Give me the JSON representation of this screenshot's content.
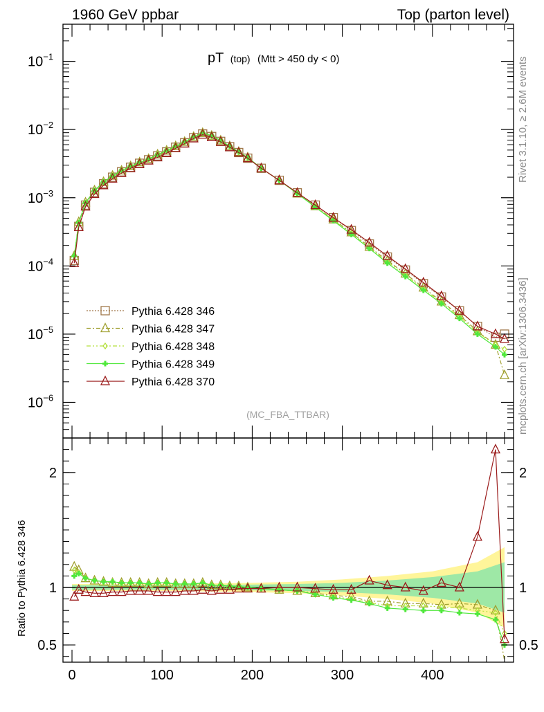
{
  "header": {
    "left": "1960 GeV ppbar",
    "right": "Top (parton level)"
  },
  "side_labels": {
    "rivet": "Rivet 3.1.10, ≥ 2.6M events",
    "mcplots": "mcplots.cern.ch [arXiv:1306.3436]"
  },
  "chart_data": [
    {
      "type": "line",
      "panel": "main",
      "title_main": "pT",
      "title_sub": "(top)",
      "title_cut": "(Mtt > 450 dy < 0)",
      "watermark": "(MC_FBA_TTBAR)",
      "yscale": "log",
      "xlim": [
        -10,
        490
      ],
      "ylim": [
        3e-07,
        0.35
      ],
      "y_ticks": [
        {
          "value": 1e-06,
          "base": "10",
          "exp": "−6"
        },
        {
          "value": 1e-05,
          "base": "10",
          "exp": "−5"
        },
        {
          "value": 0.0001,
          "base": "10",
          "exp": "−4"
        },
        {
          "value": 0.001,
          "base": "10",
          "exp": "−3"
        },
        {
          "value": 0.01,
          "base": "10",
          "exp": "−2"
        },
        {
          "value": 0.1,
          "base": "10",
          "exp": "−1"
        }
      ],
      "legend_position": "middle-left",
      "series": [
        {
          "name": "Pythia 6.428 346",
          "color": "#a0784a",
          "marker": "square",
          "dash": "2,2",
          "x": [
            2.5,
            7.5,
            15,
            25,
            35,
            45,
            55,
            65,
            75,
            85,
            95,
            105,
            115,
            125,
            135,
            145,
            155,
            165,
            175,
            185,
            195,
            210,
            230,
            250,
            270,
            290,
            310,
            330,
            350,
            370,
            390,
            410,
            430,
            450,
            470,
            480
          ],
          "y": [
            0.00012,
            0.00038,
            0.00078,
            0.0012,
            0.0016,
            0.002,
            0.0024,
            0.0028,
            0.0032,
            0.0036,
            0.0041,
            0.0047,
            0.0055,
            0.0064,
            0.0076,
            0.0086,
            0.0079,
            0.0067,
            0.0056,
            0.0046,
            0.0038,
            0.0027,
            0.0018,
            0.00118,
            0.00078,
            0.00051,
            0.00033,
            0.00021,
            0.000135,
            8.7e-05,
            5.5e-05,
            3.5e-05,
            2.2e-05,
            1.3e-05,
            9e-06,
            1e-05
          ]
        },
        {
          "name": "Pythia 6.428 347",
          "color": "#a0a030",
          "marker": "triangle",
          "dash": "6,3,2,3",
          "x": [
            2.5,
            7.5,
            15,
            25,
            35,
            45,
            55,
            65,
            75,
            85,
            95,
            105,
            115,
            125,
            135,
            145,
            155,
            165,
            175,
            185,
            195,
            210,
            230,
            250,
            270,
            290,
            310,
            330,
            350,
            370,
            390,
            410,
            430,
            450,
            470,
            480
          ],
          "y": [
            0.00014,
            0.00044,
            0.00085,
            0.00128,
            0.0017,
            0.0021,
            0.0025,
            0.0029,
            0.0033,
            0.0037,
            0.0043,
            0.0049,
            0.0057,
            0.0066,
            0.0078,
            0.0089,
            0.0081,
            0.0069,
            0.0057,
            0.0047,
            0.0039,
            0.0027,
            0.0018,
            0.00115,
            0.00075,
            0.00048,
            0.00031,
            0.00019,
            0.00012,
            7.7e-05,
            4.8e-05,
            3e-05,
            1.9e-05,
            1.1e-05,
            7e-06,
            2.5e-06
          ]
        },
        {
          "name": "Pythia 6.428 348",
          "color": "#b4e03c",
          "marker": "diamond",
          "dash": "6,3,2,3,2,3",
          "x": [
            2.5,
            7.5,
            15,
            25,
            35,
            45,
            55,
            65,
            75,
            85,
            95,
            105,
            115,
            125,
            135,
            145,
            155,
            165,
            175,
            185,
            195,
            210,
            230,
            250,
            270,
            290,
            310,
            330,
            350,
            370,
            390,
            410,
            430,
            450,
            470,
            480
          ],
          "y": [
            0.00014,
            0.00043,
            0.00084,
            0.00127,
            0.0017,
            0.0021,
            0.0025,
            0.0029,
            0.0033,
            0.0037,
            0.0043,
            0.0049,
            0.0057,
            0.0066,
            0.0078,
            0.0089,
            0.0081,
            0.0069,
            0.0057,
            0.0047,
            0.0039,
            0.0027,
            0.0018,
            0.00115,
            0.00074,
            0.00047,
            0.0003,
            0.000185,
            0.000115,
            7.3e-05,
            4.6e-05,
            2.9e-05,
            1.8e-05,
            1.05e-05,
            7e-06,
            6e-06
          ]
        },
        {
          "name": "Pythia 6.428 349",
          "color": "#50e83c",
          "marker": "cross",
          "dash": "",
          "x": [
            2.5,
            7.5,
            15,
            25,
            35,
            45,
            55,
            65,
            75,
            85,
            95,
            105,
            115,
            125,
            135,
            145,
            155,
            165,
            175,
            185,
            195,
            210,
            230,
            250,
            270,
            290,
            310,
            330,
            350,
            370,
            390,
            410,
            430,
            450,
            470,
            480
          ],
          "y": [
            0.00014,
            0.00043,
            0.00084,
            0.00127,
            0.0017,
            0.0021,
            0.0025,
            0.0029,
            0.0033,
            0.0037,
            0.0043,
            0.0049,
            0.0057,
            0.0066,
            0.0078,
            0.0089,
            0.0081,
            0.0069,
            0.0057,
            0.0047,
            0.0039,
            0.0027,
            0.0018,
            0.00115,
            0.00073,
            0.00046,
            0.00029,
            0.00018,
            0.00011,
            7e-05,
            4.4e-05,
            2.8e-05,
            1.7e-05,
            1e-05,
            6.5e-06,
            5e-06
          ]
        },
        {
          "name": "Pythia 6.428 370",
          "color": "#9b1c1c",
          "marker": "triangle",
          "dash": "",
          "x": [
            2.5,
            7.5,
            15,
            25,
            35,
            45,
            55,
            65,
            75,
            85,
            95,
            105,
            115,
            125,
            135,
            145,
            155,
            165,
            175,
            185,
            195,
            210,
            230,
            250,
            270,
            290,
            310,
            330,
            350,
            370,
            390,
            410,
            430,
            450,
            470,
            480
          ],
          "y": [
            0.00011,
            0.00037,
            0.00074,
            0.00113,
            0.00152,
            0.0019,
            0.0023,
            0.0027,
            0.0031,
            0.0035,
            0.0039,
            0.0045,
            0.0053,
            0.0062,
            0.0074,
            0.0084,
            0.0077,
            0.0066,
            0.0055,
            0.0046,
            0.0038,
            0.0027,
            0.0018,
            0.00118,
            0.00078,
            0.00051,
            0.00034,
            0.00022,
            0.00014,
            9e-05,
            5.7e-05,
            3.6e-05,
            2.2e-05,
            1.3e-05,
            1e-05,
            8.5e-06
          ]
        }
      ]
    },
    {
      "type": "line",
      "panel": "ratio",
      "ylabel": "Ratio to Pythia 6.428 346",
      "xlim": [
        -10,
        490
      ],
      "ylim": [
        0.35,
        2.3
      ],
      "x_ticks": [
        0,
        100,
        200,
        300,
        400
      ],
      "y_ticks": [
        0.5,
        1,
        2
      ],
      "y_tick_labels": [
        "0.5",
        "1",
        "2"
      ],
      "bands": [
        {
          "color": "#fff59a",
          "x": [
            0,
            100,
            200,
            250,
            300,
            350,
            400,
            450,
            480
          ],
          "half_width": [
            0.03,
            0.03,
            0.04,
            0.05,
            0.07,
            0.1,
            0.14,
            0.22,
            0.35
          ]
        },
        {
          "color": "#9ee8a6",
          "x": [
            0,
            100,
            200,
            250,
            300,
            350,
            400,
            450,
            480
          ],
          "half_width": [
            0.02,
            0.02,
            0.025,
            0.03,
            0.04,
            0.06,
            0.09,
            0.14,
            0.22
          ]
        }
      ],
      "series": [
        {
          "name": "Pythia 6.428 347",
          "color": "#a0a030",
          "marker": "triangle",
          "dash": "6,3,2,3",
          "x": [
            2.5,
            7.5,
            15,
            25,
            35,
            45,
            55,
            65,
            75,
            85,
            95,
            105,
            115,
            125,
            135,
            145,
            155,
            165,
            175,
            185,
            195,
            210,
            230,
            250,
            270,
            290,
            310,
            330,
            350,
            370,
            390,
            410,
            430,
            450,
            470,
            480
          ],
          "y": [
            1.18,
            1.15,
            1.08,
            1.06,
            1.05,
            1.04,
            1.04,
            1.04,
            1.04,
            1.03,
            1.04,
            1.04,
            1.03,
            1.03,
            1.03,
            1.04,
            1.02,
            1.02,
            1.01,
            1.01,
            1.0,
            0.99,
            0.98,
            0.97,
            0.95,
            0.93,
            0.92,
            0.88,
            0.88,
            0.86,
            0.86,
            0.85,
            0.86,
            0.85,
            0.8,
            0.25
          ]
        },
        {
          "name": "Pythia 6.428 348",
          "color": "#b4e03c",
          "marker": "diamond",
          "dash": "6,3,2,3,2,3",
          "x": [
            2.5,
            7.5,
            15,
            25,
            35,
            45,
            55,
            65,
            75,
            85,
            95,
            105,
            115,
            125,
            135,
            145,
            155,
            165,
            175,
            185,
            195,
            210,
            230,
            250,
            270,
            290,
            310,
            330,
            350,
            370,
            390,
            410,
            430,
            450,
            470,
            480
          ],
          "y": [
            1.15,
            1.13,
            1.08,
            1.06,
            1.05,
            1.05,
            1.04,
            1.04,
            1.04,
            1.03,
            1.04,
            1.04,
            1.03,
            1.03,
            1.03,
            1.04,
            1.02,
            1.02,
            1.01,
            1.01,
            1.0,
            0.99,
            0.98,
            0.97,
            0.94,
            0.92,
            0.9,
            0.87,
            0.84,
            0.84,
            0.84,
            0.83,
            0.82,
            0.8,
            0.78,
            0.6
          ]
        },
        {
          "name": "Pythia 6.428 349",
          "color": "#50e83c",
          "marker": "cross",
          "dash": "",
          "x": [
            2.5,
            7.5,
            15,
            25,
            35,
            45,
            55,
            65,
            75,
            85,
            95,
            105,
            115,
            125,
            135,
            145,
            155,
            165,
            175,
            185,
            195,
            210,
            230,
            250,
            270,
            290,
            310,
            330,
            350,
            370,
            390,
            410,
            430,
            450,
            470,
            480
          ],
          "y": [
            1.1,
            1.12,
            1.08,
            1.06,
            1.05,
            1.05,
            1.04,
            1.04,
            1.04,
            1.03,
            1.04,
            1.04,
            1.03,
            1.03,
            1.03,
            1.04,
            1.02,
            1.02,
            1.01,
            1.01,
            1.0,
            0.99,
            0.98,
            0.97,
            0.94,
            0.91,
            0.89,
            0.86,
            0.82,
            0.81,
            0.8,
            0.8,
            0.78,
            0.77,
            0.72,
            0.5
          ]
        },
        {
          "name": "Pythia 6.428 370",
          "color": "#9b1c1c",
          "marker": "triangle",
          "dash": "",
          "x": [
            2.5,
            7.5,
            15,
            25,
            35,
            45,
            55,
            65,
            75,
            85,
            95,
            105,
            115,
            125,
            135,
            145,
            155,
            165,
            175,
            185,
            195,
            210,
            230,
            250,
            270,
            290,
            310,
            330,
            350,
            370,
            390,
            410,
            430,
            450,
            470,
            480
          ],
          "y": [
            0.92,
            0.98,
            0.96,
            0.95,
            0.95,
            0.96,
            0.96,
            0.97,
            0.97,
            0.97,
            0.96,
            0.96,
            0.96,
            0.97,
            0.97,
            0.98,
            0.97,
            0.98,
            0.98,
            0.99,
            0.99,
            0.99,
            1.0,
            1.0,
            0.99,
            0.98,
            0.98,
            1.06,
            1.02,
            1.0,
            0.97,
            1.04,
            1.0,
            1.44,
            2.2,
            0.55
          ]
        }
      ]
    }
  ]
}
